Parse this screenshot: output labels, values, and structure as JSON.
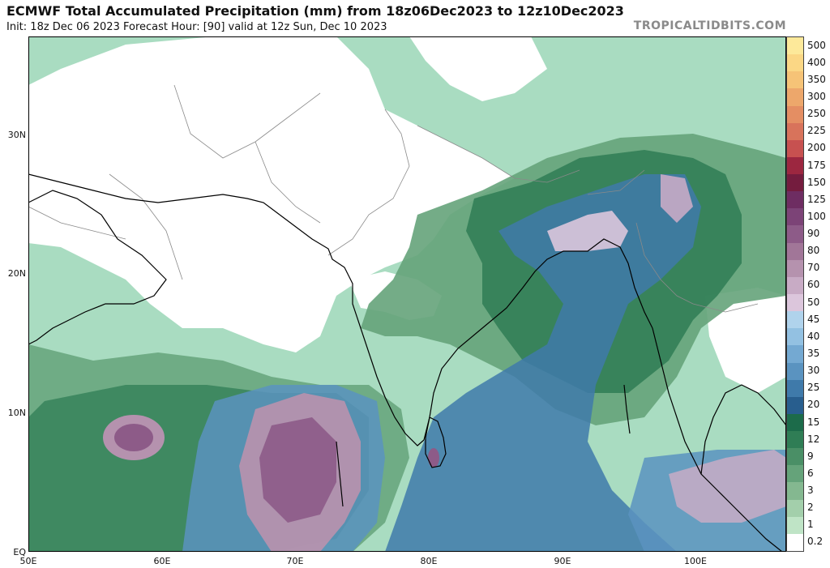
{
  "header": {
    "title": "ECMWF Total Accumulated Precipitation (mm) from 18z06Dec2023 to 12z10Dec2023",
    "subtitle": "Init: 18z Dec 06 2023   Forecast Hour: [90]   valid at 12z Sun, Dec 10 2023",
    "credit": "TROPICALTIDBITS.COM"
  },
  "axes": {
    "lat_labels": [
      "30N",
      "20N",
      "10N",
      "EQ"
    ],
    "lon_labels": [
      "50E",
      "60E",
      "70E",
      "80E",
      "90E",
      "100E"
    ]
  },
  "colorbar": {
    "levels": [
      "500",
      "400",
      "350",
      "300",
      "250",
      "225",
      "200",
      "175",
      "150",
      "125",
      "100",
      "90",
      "80",
      "70",
      "60",
      "50",
      "45",
      "40",
      "35",
      "30",
      "25",
      "20",
      "15",
      "12",
      "9",
      "6",
      "3",
      "2",
      "1",
      "0.2"
    ],
    "colors": [
      "#fde99a",
      "#fbd785",
      "#f6c377",
      "#eda76b",
      "#e48e63",
      "#d8735b",
      "#c75150",
      "#9c2740",
      "#741c3e",
      "#6e2d62",
      "#7c4377",
      "#8d5b88",
      "#a17698",
      "#b592ae",
      "#c8abc5",
      "#dcc6dc",
      "#b0d3ec",
      "#93c1e2",
      "#74a9d2",
      "#5a93c0",
      "#3f7aaa",
      "#285e8e",
      "#1c6b4a",
      "#2f7d55",
      "#4a8f66",
      "#65a37a",
      "#84b890",
      "#a3cfab",
      "#bfe4c6",
      "#ffffff"
    ]
  },
  "map": {
    "base_color": "#a9dcc1",
    "dry_color": "#ffffff",
    "coast_color": "#000000",
    "border_color": "#8a8a8a"
  }
}
